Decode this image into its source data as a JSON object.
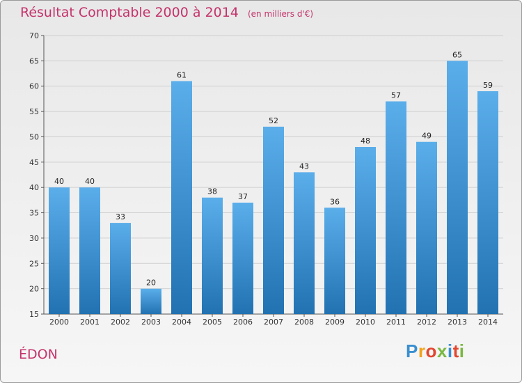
{
  "header": {
    "title": "Résultat Comptable 2000 à 2014",
    "unit": "(en milliers d'€)"
  },
  "footer": {
    "location": "ÉDON",
    "brand": "Proxiti",
    "brand_colors": [
      "#3a8fd0",
      "#f2a21c",
      "#e2462f",
      "#7ab843",
      "#3a8fd0",
      "#e2462f",
      "#7ab843"
    ]
  },
  "colors": {
    "title": "#c4336b",
    "bar_top": "#5aaeea",
    "bar_bottom": "#2272b2"
  },
  "chart_data": {
    "type": "bar",
    "title": "Résultat Comptable 2000 à 2014",
    "subtitle": "(en milliers d'€)",
    "xlabel": "",
    "ylabel": "",
    "categories": [
      "2000",
      "2001",
      "2002",
      "2003",
      "2004",
      "2005",
      "2006",
      "2007",
      "2008",
      "2009",
      "2010",
      "2011",
      "2012",
      "2013",
      "2014"
    ],
    "values": [
      40,
      40,
      33,
      20,
      61,
      38,
      37,
      52,
      43,
      36,
      48,
      57,
      49,
      65,
      59
    ],
    "ylim": [
      15,
      70
    ],
    "yticks": [
      15,
      20,
      25,
      30,
      35,
      40,
      45,
      50,
      55,
      60,
      65,
      70
    ],
    "grid": true,
    "legend": "none"
  }
}
